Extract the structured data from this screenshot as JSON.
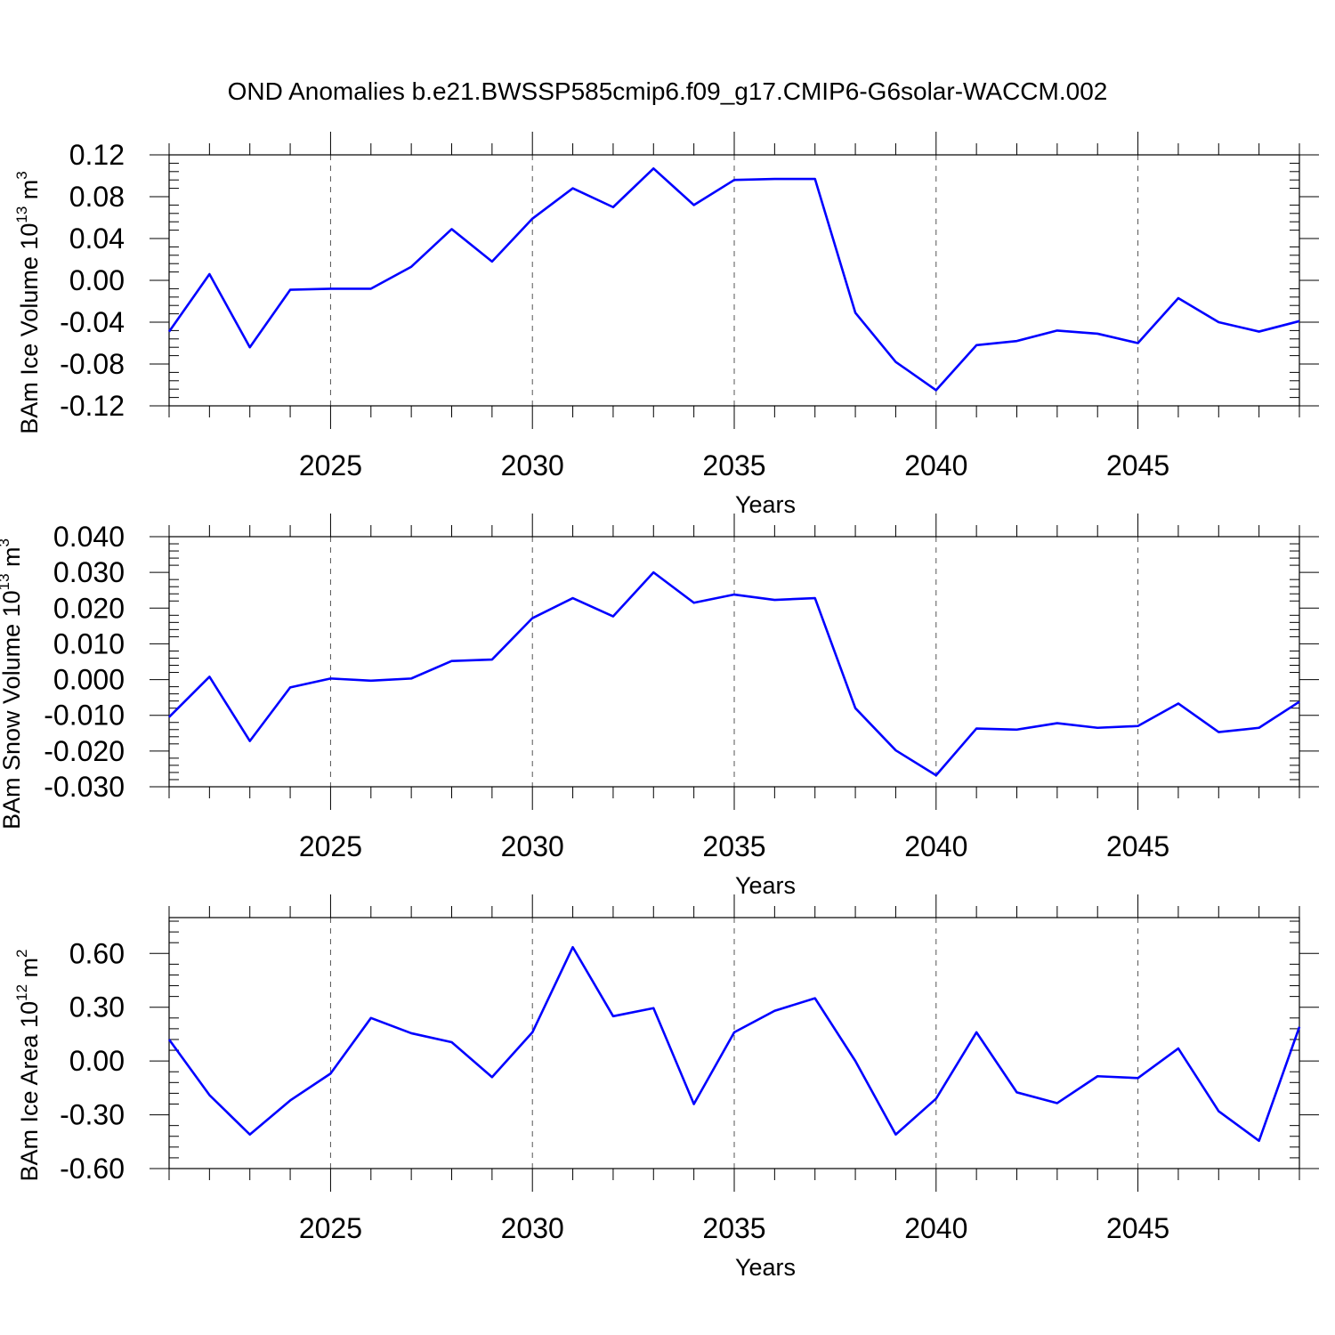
{
  "title": "OND Anomalies b.e21.BWSSP585cmip6.f09_g17.CMIP6-G6solar-WACCM.002",
  "chart_data": [
    {
      "type": "line",
      "x": [
        2021,
        2022,
        2023,
        2024,
        2025,
        2026,
        2027,
        2028,
        2029,
        2030,
        2031,
        2032,
        2033,
        2034,
        2035,
        2036,
        2037,
        2038,
        2039,
        2040,
        2041,
        2042,
        2043,
        2044,
        2045,
        2046,
        2047,
        2048,
        2049
      ],
      "series": [
        {
          "name": "BAm Ice Volume",
          "color": "#0000ff",
          "values": [
            -0.049,
            0.006,
            -0.064,
            -0.009,
            -0.008,
            -0.008,
            0.013,
            0.049,
            0.018,
            0.059,
            0.088,
            0.07,
            0.107,
            0.072,
            0.096,
            0.097,
            0.097,
            -0.031,
            -0.078,
            -0.105,
            -0.062,
            -0.058,
            -0.048,
            -0.051,
            -0.06,
            -0.017,
            -0.04,
            -0.049,
            -0.039
          ]
        }
      ],
      "xlim": [
        2021,
        2049
      ],
      "ylim": [
        -0.12,
        0.12
      ],
      "yticks": [
        -0.12,
        -0.08,
        -0.04,
        0.0,
        0.04,
        0.08,
        0.12
      ],
      "ytick_labels": [
        "-0.12",
        "-0.08",
        "-0.04",
        "0.00",
        "0.04",
        "0.08",
        "0.12"
      ],
      "xticks": [
        2025,
        2030,
        2035,
        2040,
        2045
      ],
      "xtick_labels": [
        "2025",
        "2030",
        "2035",
        "2040",
        "2045"
      ],
      "xlabel": "Years",
      "ylabel": {
        "base": "BAm Ice Volume 10",
        "exp": "13",
        "unit": " m",
        "unit_exp": "3"
      },
      "grid": "vertical-dashed"
    },
    {
      "type": "line",
      "x": [
        2021,
        2022,
        2023,
        2024,
        2025,
        2026,
        2027,
        2028,
        2029,
        2030,
        2031,
        2032,
        2033,
        2034,
        2035,
        2036,
        2037,
        2038,
        2039,
        2040,
        2041,
        2042,
        2043,
        2044,
        2045,
        2046,
        2047,
        2048,
        2049
      ],
      "series": [
        {
          "name": "BAm Snow Volume",
          "color": "#0000ff",
          "values": [
            -0.0105,
            0.0008,
            -0.0172,
            -0.0022,
            0.0003,
            -0.0003,
            0.0003,
            0.0052,
            0.0056,
            0.0172,
            0.0228,
            0.0177,
            0.03,
            0.0215,
            0.0238,
            0.0223,
            0.0228,
            -0.008,
            -0.0198,
            -0.0268,
            -0.0137,
            -0.014,
            -0.0122,
            -0.0135,
            -0.013,
            -0.0067,
            -0.0147,
            -0.0135,
            -0.0062
          ]
        }
      ],
      "xlim": [
        2021,
        2049
      ],
      "ylim": [
        -0.03,
        0.04
      ],
      "yticks": [
        -0.03,
        -0.02,
        -0.01,
        0.0,
        0.01,
        0.02,
        0.03,
        0.04
      ],
      "ytick_labels": [
        "-0.030",
        "-0.020",
        "-0.010",
        "0.000",
        "0.010",
        "0.020",
        "0.030",
        "0.040"
      ],
      "xticks": [
        2025,
        2030,
        2035,
        2040,
        2045
      ],
      "xtick_labels": [
        "2025",
        "2030",
        "2035",
        "2040",
        "2045"
      ],
      "xlabel": "Years",
      "ylabel": {
        "base": "BAm Snow Volume 10",
        "exp": "13",
        "unit": " m",
        "unit_exp": "3"
      },
      "grid": "vertical-dashed"
    },
    {
      "type": "line",
      "x": [
        2021,
        2022,
        2023,
        2024,
        2025,
        2026,
        2027,
        2028,
        2029,
        2030,
        2031,
        2032,
        2033,
        2034,
        2035,
        2036,
        2037,
        2038,
        2039,
        2040,
        2041,
        2042,
        2043,
        2044,
        2045,
        2046,
        2047,
        2048,
        2049
      ],
      "series": [
        {
          "name": "BAm Ice Area",
          "color": "#0000ff",
          "values": [
            0.12,
            -0.19,
            -0.41,
            -0.22,
            -0.07,
            0.24,
            0.155,
            0.105,
            -0.09,
            0.16,
            0.635,
            0.25,
            0.295,
            -0.24,
            0.16,
            0.28,
            0.35,
            0.0,
            -0.41,
            -0.21,
            0.16,
            -0.175,
            -0.235,
            -0.085,
            -0.095,
            0.07,
            -0.28,
            -0.445,
            0.19
          ]
        }
      ],
      "xlim": [
        2021,
        2049
      ],
      "ylim": [
        -0.6,
        0.8
      ],
      "yticks": [
        -0.6,
        -0.3,
        0.0,
        0.3,
        0.6
      ],
      "ytick_labels": [
        "-0.60",
        "-0.30",
        "0.00",
        "0.30",
        "0.60"
      ],
      "xticks": [
        2025,
        2030,
        2035,
        2040,
        2045
      ],
      "xtick_labels": [
        "2025",
        "2030",
        "2035",
        "2040",
        "2045"
      ],
      "xlabel": "Years",
      "ylabel": {
        "base": "BAm Ice Area 10",
        "exp": "12",
        "unit": " m",
        "unit_exp": "2"
      },
      "grid": "vertical-dashed"
    }
  ]
}
